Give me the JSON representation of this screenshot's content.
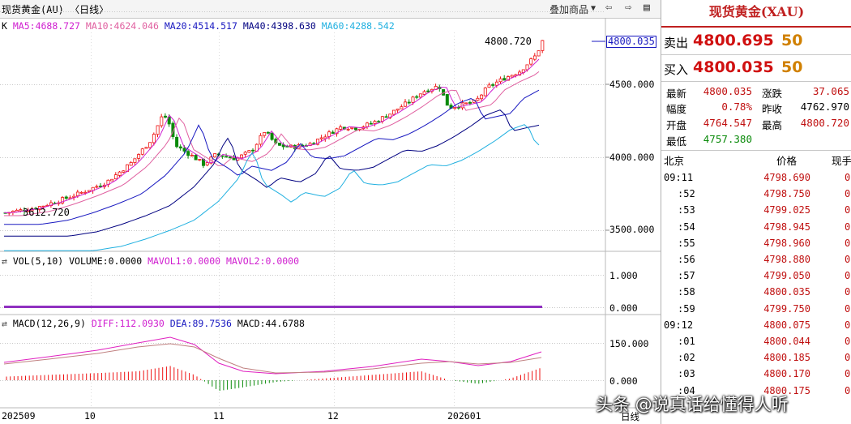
{
  "header": {
    "title": "现货黄金(AU) 〈日线〉",
    "overlay_label": "叠加商品",
    "nav_icons": [
      "arrow-left-icon",
      "arrow-right-icon",
      "grid-icon"
    ]
  },
  "main_panel": {
    "prefix": "K",
    "ma5": "MA5:4688.727",
    "ma10": "MA10:4624.046",
    "ma20": "MA20:4514.517",
    "ma40": "MA40:4398.630",
    "ma60": "MA60:4288.542",
    "high_marker": "4800.720",
    "low_marker": "3612.720",
    "current_price_tag": "4800.035",
    "y_ticks": [
      "4500.000",
      "4000.000",
      "3500.000"
    ]
  },
  "volume_panel": {
    "label": "VOL(5,10) VOLUME:0.0000",
    "mavol1": "MAVOL1:0.0000",
    "mavol2": "MAVOL2:0.0000",
    "y_ticks": [
      "1.000",
      "0.000"
    ]
  },
  "macd_panel": {
    "label": "MACD(12,26,9)",
    "diff": "DIFF:112.0930",
    "dea": "DEA:89.7536",
    "macd": "MACD:44.6788",
    "y_ticks": [
      "150.000",
      "0.000"
    ]
  },
  "x_axis": [
    "202509",
    "10",
    "11",
    "12",
    "202601"
  ],
  "period_label": "日线",
  "colors": {
    "up": "#ee1111",
    "down": "#0a8a0a",
    "ma5": "#d020d0",
    "ma10": "#e060a0",
    "ma20": "#1818c0",
    "ma40": "#000080",
    "ma60": "#20b0e0"
  },
  "quote": {
    "title": "现货黄金(XAU)",
    "sell_label": "卖出",
    "sell_price": "4800.695",
    "sell_vol": "50",
    "buy_label": "买入",
    "buy_price": "4800.035",
    "buy_vol": "50"
  },
  "stats": {
    "latest_label": "最新",
    "latest": "4800.035",
    "change_label": "涨跌",
    "change": "37.065",
    "amp_label": "幅度",
    "amp": "0.78%",
    "prev_label": "昨收",
    "prev": "4762.970",
    "open_label": "开盘",
    "open": "4764.547",
    "high_label": "最高",
    "high": "4800.720",
    "low_label": "最低",
    "low": "4757.380"
  },
  "ticks_header": {
    "place": "北京",
    "price": "价格",
    "vol": "现手"
  },
  "ticks": [
    {
      "time": "09:11",
      "price": "4798.690",
      "vol": "0"
    },
    {
      "time": ":52",
      "price": "4798.750",
      "vol": "0"
    },
    {
      "time": ":53",
      "price": "4799.025",
      "vol": "0"
    },
    {
      "time": ":54",
      "price": "4798.945",
      "vol": "0"
    },
    {
      "time": ":55",
      "price": "4798.960",
      "vol": "0"
    },
    {
      "time": ":56",
      "price": "4798.880",
      "vol": "0"
    },
    {
      "time": ":57",
      "price": "4799.050",
      "vol": "0"
    },
    {
      "time": ":58",
      "price": "4800.035",
      "vol": "0"
    },
    {
      "time": ":59",
      "price": "4799.750",
      "vol": "0"
    },
    {
      "time": "09:12",
      "price": "4800.075",
      "vol": "0"
    },
    {
      "time": ":01",
      "price": "4800.044",
      "vol": "0"
    },
    {
      "time": ":02",
      "price": "4800.185",
      "vol": "0"
    },
    {
      "time": ":03",
      "price": "4800.170",
      "vol": "0"
    },
    {
      "time": ":04",
      "price": "4800.175",
      "vol": "0"
    }
  ],
  "watermark": "头条 @说真话给懂得人听"
}
